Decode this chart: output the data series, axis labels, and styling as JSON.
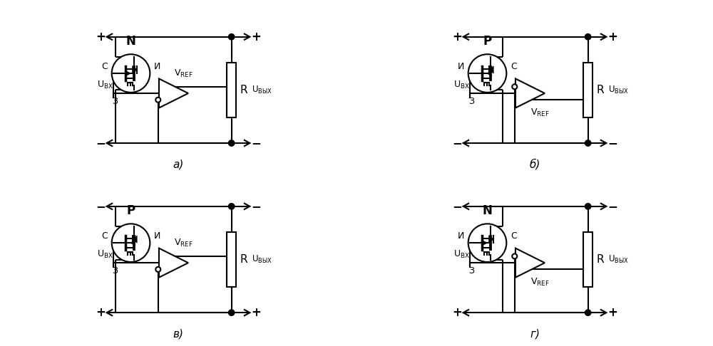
{
  "background": "#ffffff",
  "lw": 1.5,
  "lc": "#000000",
  "panels": [
    {
      "idx": 0,
      "label": "а)",
      "ttype": "N",
      "top_sign": "+",
      "bot_sign": "−",
      "C_left": true,
      "circle_top": false
    },
    {
      "idx": 1,
      "label": "б)",
      "ttype": "P",
      "top_sign": "+",
      "bot_sign": "−",
      "C_left": false,
      "circle_top": true
    },
    {
      "idx": 2,
      "label": "в)",
      "ttype": "P",
      "top_sign": "−",
      "bot_sign": "+",
      "C_left": true,
      "circle_top": false
    },
    {
      "idx": 3,
      "label": "г)",
      "ttype": "N",
      "top_sign": "−",
      "bot_sign": "+",
      "C_left": false,
      "circle_top": true
    }
  ]
}
